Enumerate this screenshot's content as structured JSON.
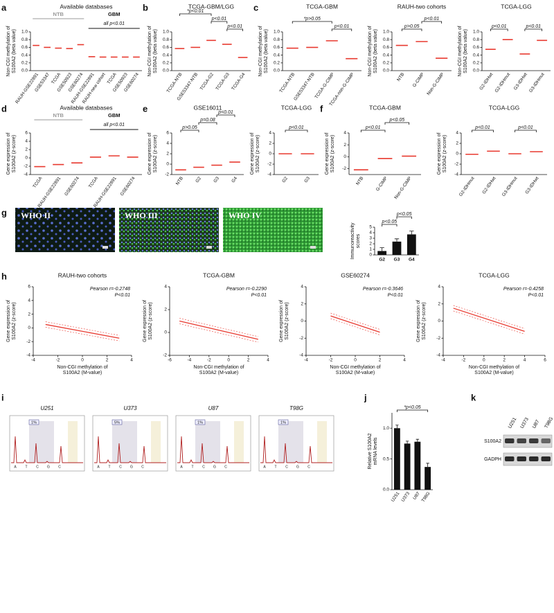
{
  "panels": [
    {
      "letter": "a",
      "plots": [
        {
          "type": "strip",
          "title": "Available databases",
          "ylabel": [
            "Non-CGI methylation of",
            "S100A2 (beta value)"
          ],
          "groups": [
            {
              "label": "NTB"
            },
            {
              "label": "GBM",
              "note": "all p<0.01"
            }
          ],
          "categories": [
            "RAUH-GSE22891",
            "GSE53347",
            "TCGA",
            "GSE50923",
            "GSE60274",
            "RAUH-GSE22891",
            "RAUH-new cohort",
            "TCGA",
            "GSE50923",
            "GSE60274"
          ],
          "values": [
            0.65,
            0.6,
            0.58,
            0.57,
            0.67,
            0.36,
            0.35,
            0.35,
            0.35,
            0.35
          ],
          "color": "#e8392f",
          "ylim": [
            0,
            1
          ],
          "yticks": [
            {
              "value": 0,
              "label": "0.0"
            },
            0.2,
            0.4,
            0.6,
            0.8,
            {
              "value": 1,
              "label": "1.0"
            }
          ]
        }
      ]
    },
    {
      "letter": "b",
      "plots": [
        {
          "type": "strip",
          "title": "TCGA-GBM/LGG",
          "ylabel": [
            "Non-CGI methylation of",
            "S100A2 (beta value)"
          ],
          "annotations": [
            "*p<0.01",
            "p<0.01",
            "p<0.01"
          ],
          "categories": [
            "TCGA-NTB",
            "GSE53347-NTB",
            "TCGA-G2",
            "TCGA-G3",
            "TCGA-G4"
          ],
          "values": [
            0.57,
            0.6,
            0.78,
            0.68,
            0.34
          ],
          "color": "#e8392f",
          "ylim": [
            0,
            1
          ],
          "yticks": [
            {
              "value": 0,
              "label": "0.0"
            },
            0.2,
            0.4,
            0.6,
            0.8,
            {
              "value": 1,
              "label": "1.0"
            }
          ]
        }
      ]
    },
    {
      "letter": "c",
      "plots": [
        {
          "type": "strip",
          "title": "TCGA-GBM",
          "ylabel": [
            "Non-CGI methylation of",
            "S100A2 (beta value)"
          ],
          "annotations": [
            "*p>0.05",
            "p<0.01"
          ],
          "categories": [
            "TCGA-NTB",
            "GSE53347-NTB",
            "TCGA-G-CIMP",
            "TCGA-non-G-CIMP"
          ],
          "values": [
            0.58,
            0.6,
            0.77,
            0.31
          ],
          "color": "#e8392f",
          "ylim": [
            0,
            1
          ],
          "yticks": [
            {
              "value": 0,
              "label": "0.0"
            },
            0.2,
            0.4,
            0.6,
            0.8,
            {
              "value": 1,
              "label": "1.0"
            }
          ]
        },
        {
          "type": "strip",
          "title": "RAUH-two cohorts",
          "ylabel": [
            "Non-CGI methylation of",
            "S100A2 (beta value)"
          ],
          "annotations": [
            "p>0.05",
            "p<0.01"
          ],
          "categories": [
            "NTB",
            "G-CIMP",
            "Non-G-CIMP"
          ],
          "values": [
            0.65,
            0.75,
            0.32
          ],
          "color": "#e8392f",
          "ylim": [
            0,
            1
          ],
          "yticks": [
            {
              "value": 0,
              "label": "0.0"
            },
            0.2,
            0.4,
            0.6,
            0.8,
            {
              "value": 1,
              "label": "1.0"
            }
          ]
        },
        {
          "type": "strip",
          "title": "TCGA-LGG",
          "ylabel": [
            "Non-CGI methylation of",
            "S100A2 (beta value)"
          ],
          "annotations": [
            "p<0.01",
            "p<0.01"
          ],
          "categories": [
            "G2-IDHwt",
            "G2-IDHmut",
            "G3-IDHwt",
            "G3-IDHmut"
          ],
          "values": [
            0.55,
            0.8,
            0.43,
            0.78
          ],
          "color": "#e8392f",
          "ylim": [
            0,
            1
          ],
          "yticks": [
            {
              "value": 0,
              "label": "0.0"
            },
            0.2,
            0.4,
            0.6,
            0.8,
            {
              "value": 1,
              "label": "1.0"
            }
          ]
        }
      ]
    },
    {
      "letter": "d",
      "plots": [
        {
          "type": "strip",
          "title": "Available databases",
          "ylabel": [
            "Gene expression of",
            "S100A2 (z-score)"
          ],
          "groups": [
            {
              "label": "NTB"
            },
            {
              "label": "GBM",
              "note": "all p<0.01"
            }
          ],
          "categories": [
            "TCGA",
            "RAUH-GSE22891",
            "GSE60274",
            "TCGA",
            "RAUH-GSE22891",
            "GSE60274"
          ],
          "values": [
            -2.1,
            -1.6,
            -1.2,
            0.2,
            0.5,
            0.2
          ],
          "color": "#e8392f",
          "ylim": [
            -4,
            6
          ],
          "yticks": [
            -4,
            -2,
            0,
            2,
            4,
            6
          ]
        }
      ]
    },
    {
      "letter": "e",
      "plots": [
        {
          "type": "strip",
          "title": "GSE16011",
          "ylabel": [
            "Gene expression of",
            "S100A2 (z-score)"
          ],
          "annotations": [
            "p>0.05",
            "p=0.08",
            "p<0.01"
          ],
          "categories": [
            "NTB",
            "G2",
            "G3",
            "G4"
          ],
          "values": [
            -1.1,
            -0.6,
            -0.2,
            0.4
          ],
          "color": "#e8392f",
          "ylim": [
            -2,
            6
          ],
          "yticks": [
            -2,
            0,
            2,
            4,
            6
          ]
        },
        {
          "type": "strip",
          "title": "TCGA-LGG",
          "ylabel": [
            "Gene expression of",
            "S100A2 (z-score)"
          ],
          "annotations": [
            "p<0.01"
          ],
          "categories": [
            "G2",
            "G3"
          ],
          "values": [
            0,
            0
          ],
          "color": "#e8392f",
          "ylim": [
            -4,
            4
          ],
          "yticks": [
            -4,
            -2,
            0,
            2,
            4
          ]
        }
      ]
    },
    {
      "letter": "f",
      "plots": [
        {
          "type": "strip",
          "title": "TCGA-GBM",
          "ylabel": [
            "Gene expression of",
            "S100A2 (z-score)"
          ],
          "annotations": [
            "p<0.01",
            "p<0.05"
          ],
          "categories": [
            "NTB",
            "G-CIMP",
            "Non-G-CIMP"
          ],
          "values": [
            -2.2,
            -0.3,
            0.1
          ],
          "color": "#e8392f",
          "ylim": [
            -3,
            4
          ],
          "yticks": [
            -2,
            0,
            2,
            4
          ]
        },
        {
          "type": "strip",
          "title": "TCGA-LGG",
          "ylabel": [
            "Gene expression of",
            "S100A2 (z-score)"
          ],
          "annotations": [
            "p<0.01",
            "p<0.01"
          ],
          "categories": [
            "G2-IDHmut",
            "G2-IDHwt",
            "G3-IDHmut",
            "G3-IDHwt"
          ],
          "values": [
            -0.1,
            0.5,
            0,
            0.4
          ],
          "color": "#e8392f",
          "ylim": [
            -4,
            4
          ],
          "yticks": [
            -4,
            -2,
            0,
            2,
            4
          ]
        }
      ]
    },
    {
      "letter": "g",
      "images": [
        "WHO II",
        "WHO III",
        "WHO IV"
      ],
      "plots": [
        {
          "type": "bar",
          "ylabel": [
            "Immunoreactivity",
            "scores"
          ],
          "annotations": [
            "p<0.05",
            "p<0.05"
          ],
          "categories": [
            "G2",
            "G3",
            "G4"
          ],
          "values": [
            0.7,
            2.4,
            3.7
          ],
          "errors": [
            0.6,
            0.5,
            0.6
          ],
          "color": "#111111",
          "ylim": [
            0,
            5
          ],
          "yticks": [
            0,
            1,
            2,
            3,
            4,
            5
          ]
        }
      ]
    },
    {
      "letter": "h",
      "plots": [
        {
          "type": "scatter",
          "title": "RAUH-two cohorts",
          "annotations": [
            "Pearson r=-0.2748",
            "P<0.01"
          ],
          "xlabel": [
            "Non-CGI methylation of",
            "S100A2 (M-value)"
          ],
          "ylabel": [
            "Gene expression of",
            "S100A2 (z-score)"
          ],
          "fit": {
            "x": [
              -3,
              3
            ],
            "y": [
              0.5,
              -1.5
            ]
          },
          "color": "#e8392f",
          "xlim": [
            -4,
            4
          ],
          "xticks": [
            -4,
            -2,
            0,
            2,
            4
          ],
          "ylim": [
            -4,
            6
          ],
          "yticks": [
            -4,
            -2,
            0,
            2,
            4,
            6
          ]
        },
        {
          "type": "scatter",
          "title": "TCGA-GBM",
          "annotations": [
            "Pearson r=-0.2290",
            "P<0.01"
          ],
          "xlabel": [
            "Non-CGI methylation of",
            "S100A2 (M-value)"
          ],
          "ylabel": [
            "Gene expression of",
            "S100A2 (z-score)"
          ],
          "fit": {
            "x": [
              -5,
              3
            ],
            "y": [
              1,
              -0.6
            ]
          },
          "color": "#e8392f",
          "xlim": [
            -6,
            4
          ],
          "xticks": [
            -6,
            -4,
            -2,
            0,
            2,
            4
          ],
          "ylim": [
            -2,
            4
          ],
          "yticks": [
            -2,
            0,
            2,
            4
          ]
        },
        {
          "type": "scatter",
          "title": "GSE60274",
          "annotations": [
            "Pearson r=-0.3646",
            "P<0.01"
          ],
          "xlabel": [
            "Non-CGI methylation of",
            "S100A2 (M-value)"
          ],
          "ylabel": [
            "Gene expression of",
            "S100A2 (z-score)"
          ],
          "fit": {
            "x": [
              -2,
              2
            ],
            "y": [
              0.6,
              -1.3
            ]
          },
          "color": "#e8392f",
          "xlim": [
            -4,
            4
          ],
          "xticks": [
            -4,
            -2,
            0,
            2,
            4
          ],
          "ylim": [
            -4,
            4
          ],
          "yticks": [
            -4,
            -2,
            0,
            2,
            4
          ]
        },
        {
          "type": "scatter",
          "title": "TCGA-LGG",
          "annotations": [
            "Pearson r=-0.4258",
            "P<0.01"
          ],
          "xlabel": [
            "Non-CGI methylation of",
            "S100A2 (M-value)"
          ],
          "ylabel": [
            "Gene expression of",
            "S100A2 (z-score)"
          ],
          "fit": {
            "x": [
              -3,
              4
            ],
            "y": [
              1.5,
              -1.2
            ]
          },
          "color": "#e8392f",
          "xlim": [
            -4,
            6
          ],
          "xticks": [
            -4,
            -2,
            0,
            2,
            4,
            6
          ],
          "ylim": [
            -4,
            4
          ],
          "yticks": [
            -4,
            -2,
            0,
            2,
            4
          ]
        }
      ]
    },
    {
      "letter": "i",
      "pyrograms": [
        {
          "label": "U251",
          "percent": "1%"
        },
        {
          "label": "U373",
          "percent": "5%"
        },
        {
          "label": "U87",
          "percent": "1%"
        },
        {
          "label": "T98G",
          "percent": "1%"
        }
      ],
      "bases": [
        "A",
        "T",
        "C",
        "G",
        "C"
      ]
    },
    {
      "letter": "j",
      "plots": [
        {
          "type": "bar",
          "ylabel": [
            "Relative S100A2",
            "mRNA levels"
          ],
          "annotations": [
            "*p<0.05"
          ],
          "categories": [
            "U251",
            "U373",
            "U87",
            "T98G"
          ],
          "values": [
            1.0,
            0.75,
            0.78,
            0.37
          ],
          "errors": [
            0.05,
            0.04,
            0.04,
            0.06
          ],
          "color": "#111111",
          "ylim": [
            0,
            1.25
          ],
          "yticks": [
            {
              "value": 0,
              "label": "0.0"
            },
            0.5,
            {
              "value": 1,
              "label": "1.0"
            }
          ]
        }
      ]
    },
    {
      "letter": "k",
      "columns": [
        "U251",
        "U373",
        "U87",
        "T98G"
      ],
      "rows": [
        "S100A2",
        "GADPH"
      ]
    }
  ]
}
